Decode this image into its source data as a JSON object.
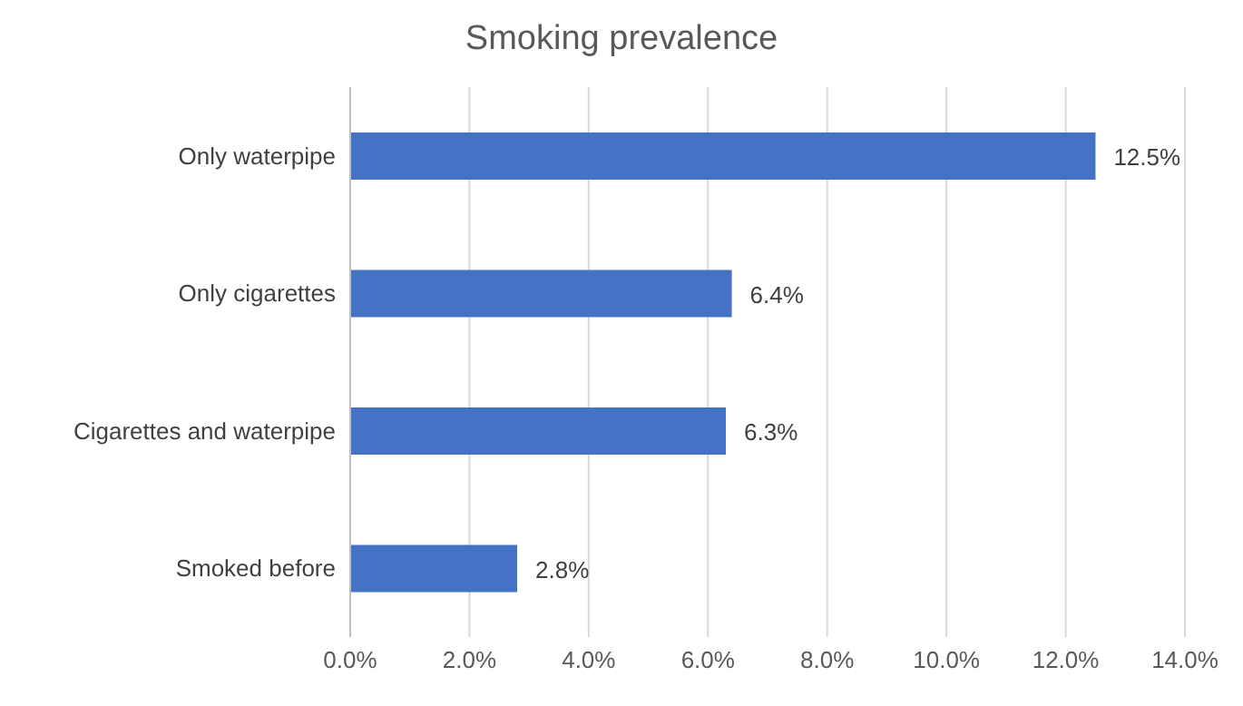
{
  "chart_data": {
    "type": "bar",
    "orientation": "horizontal",
    "title": "Smoking prevalence",
    "categories": [
      "Only waterpipe",
      "Only cigarettes",
      "Cigarettes and waterpipe",
      "Smoked before"
    ],
    "values": [
      12.5,
      6.4,
      6.3,
      2.8
    ],
    "value_labels": [
      "12.5%",
      "6.4%",
      "6.3%",
      "2.8%"
    ],
    "color": "#4472c4",
    "xlim": [
      0,
      14
    ],
    "xticks": [
      {
        "value": 0,
        "label": "0.0%"
      },
      {
        "value": 2,
        "label": "2.0%"
      },
      {
        "value": 4,
        "label": "4.0%"
      },
      {
        "value": 6,
        "label": "6.0%"
      },
      {
        "value": 8,
        "label": "8.0%"
      },
      {
        "value": 10,
        "label": "10.0%"
      },
      {
        "value": 12,
        "label": "12.0%"
      },
      {
        "value": 14,
        "label": "14.0%"
      }
    ],
    "grid": "x",
    "legend": false
  }
}
